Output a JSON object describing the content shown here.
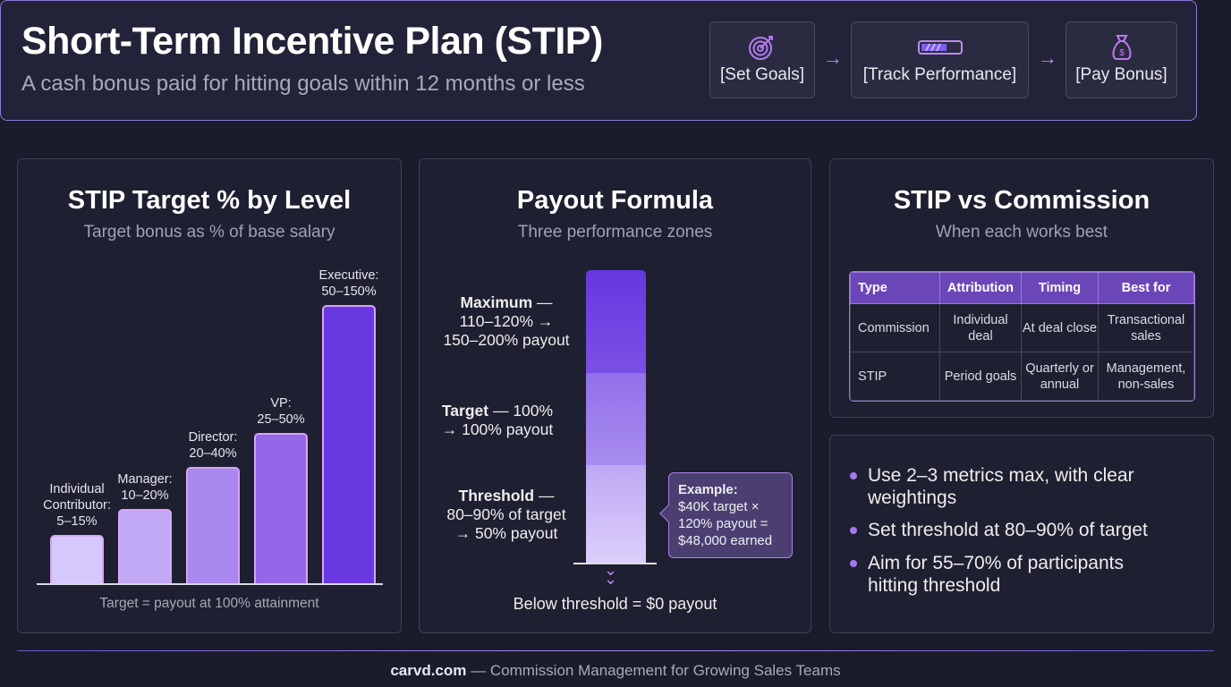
{
  "header": {
    "title": "Short-Term Incentive Plan (STIP)",
    "subtitle": "A cash bonus paid for hitting goals within 12 months or less",
    "steps": [
      {
        "label": "[Set Goals]",
        "icon": "target-icon"
      },
      {
        "label": "[Track Performance]",
        "icon": "progress-bar-icon"
      },
      {
        "label": "[Pay Bonus]",
        "icon": "money-bag-icon"
      }
    ]
  },
  "levels": {
    "title": "STIP Target % by Level",
    "subtitle": "Target bonus as % of base salary",
    "footnote": "Target = payout at 100% attainment",
    "chart_data": {
      "type": "bar",
      "categories": [
        "Individual Contributor",
        "Manager",
        "Director",
        "VP",
        "Executive"
      ],
      "labels": [
        [
          "Individual",
          "Contributor:",
          "5–15%"
        ],
        [
          "Manager:",
          "10–20%"
        ],
        [
          "Director:",
          "20–40%"
        ],
        [
          "VP:",
          "25–50%"
        ],
        [
          "Executive:",
          "50–150%"
        ]
      ],
      "ranges_pct": [
        [
          5,
          15
        ],
        [
          10,
          20
        ],
        [
          20,
          40
        ],
        [
          25,
          50
        ],
        [
          50,
          150
        ]
      ],
      "colors": [
        "#d5c8fb",
        "#c1a8f5",
        "#a887ee",
        "#9466e8",
        "#6a38e0"
      ]
    }
  },
  "formula": {
    "title": "Payout Formula",
    "subtitle": "Three performance zones",
    "zones": [
      {
        "name": "Maximum",
        "rest1": " —",
        "line2": "110–120% →",
        "line3": "150–200% payout"
      },
      {
        "name": "Target",
        "rest1": " — 100%",
        "line2": "→ 100% payout",
        "line3": ""
      },
      {
        "name": "Threshold",
        "rest1": " —",
        "line2": "80–90% of target",
        "line3": "→ 50% payout"
      }
    ],
    "example": {
      "title": "Example:",
      "lines": [
        "$40K target ×",
        "120% payout =",
        "$48,000 earned"
      ]
    },
    "below": "Below threshold = $0 payout"
  },
  "compare": {
    "title": "STIP vs Commission",
    "subtitle": "When each works best",
    "headers": [
      "Type",
      "Attribution",
      "Timing",
      "Best for"
    ],
    "rows": [
      [
        "Commission",
        "Individual deal",
        "At deal close",
        "Transactional sales"
      ],
      [
        "STIP",
        "Period goals",
        "Quarterly or annual",
        "Management, non-sales"
      ]
    ]
  },
  "tips": [
    "Use 2–3 metrics max, with clear weightings",
    "Set threshold at 80–90% of target",
    "Aim for 55–70% of participants hitting threshold"
  ],
  "footer": {
    "brand": "carvd.com",
    "tagline": " — Commission Management for Growing Sales Teams"
  }
}
